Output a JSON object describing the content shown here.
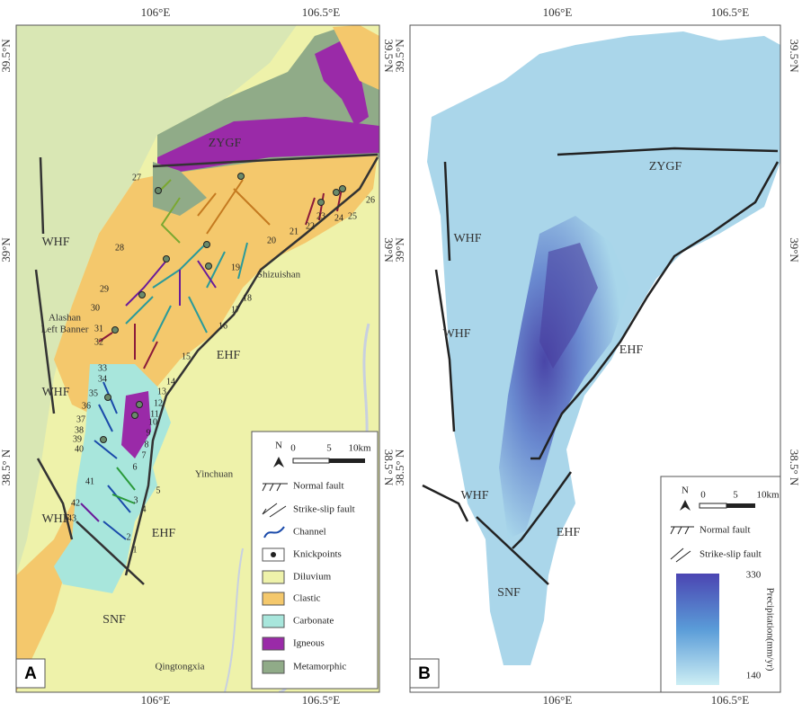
{
  "panel_a": {
    "label": "A",
    "top_axis": [
      "106°E",
      "106.5°E"
    ],
    "bottom_axis": [
      "106°E",
      "106.5°E"
    ],
    "left_axis": [
      "39.5°N",
      "39°N",
      "38.5° N"
    ],
    "right_axis": [
      "39.5°N",
      "39°N",
      "38.5° N"
    ],
    "faults": {
      "zygf": "ZYGF",
      "whf": [
        "WHF",
        "WHF",
        "WHF"
      ],
      "ehf": [
        "EHF",
        "EHF"
      ],
      "snf": "SNF"
    },
    "places": {
      "shizuishan": "Shizuishan",
      "alashan": [
        "Alashan",
        "Left Banner"
      ],
      "yinchuan": "Yinchuan",
      "qingtongxia": "Qingtongxia"
    },
    "channel_numbers": [
      "1",
      "2",
      "3",
      "4",
      "5",
      "6",
      "7",
      "8",
      "9",
      "10",
      "11",
      "12",
      "13",
      "14",
      "15",
      "16",
      "17",
      "18",
      "19",
      "20",
      "21",
      "22",
      "23",
      "24",
      "25",
      "26",
      "27",
      "28",
      "29",
      "30",
      "31",
      "32",
      "33",
      "34",
      "35",
      "36",
      "37",
      "38",
      "39",
      "40",
      "41",
      "42",
      "43"
    ],
    "legend": {
      "north": "N",
      "scale": [
        "0",
        "5",
        "10km"
      ],
      "items": [
        "Normal fault",
        "Strike-slip fault",
        "Channel",
        "Knickpoints",
        "Diluvium",
        "Clastic",
        "Carbonate",
        "Igneous",
        "Metamorphic"
      ]
    }
  },
  "panel_b": {
    "label": "B",
    "top_axis": [
      "106°E",
      "106.5°E"
    ],
    "bottom_axis": [
      "106°E",
      "106.5°E"
    ],
    "left_axis": [
      "39.5°N",
      "39°N",
      "38.5° N"
    ],
    "right_axis": [
      "39.5°N",
      "39°N",
      "38.5° N"
    ],
    "faults": {
      "zygf": "ZYGF",
      "whf": [
        "WHF",
        "WHF",
        "WHF"
      ],
      "ehf": [
        "EHF",
        "EHF"
      ],
      "snf": "SNF"
    },
    "legend": {
      "north": "N",
      "scale": [
        "0",
        "5",
        "10km"
      ],
      "items": [
        "Normal fault",
        "Strike-slip fault"
      ],
      "colorbar": {
        "max": 330,
        "min": 140,
        "title": "Precipitation(mm/yr)"
      }
    }
  }
}
